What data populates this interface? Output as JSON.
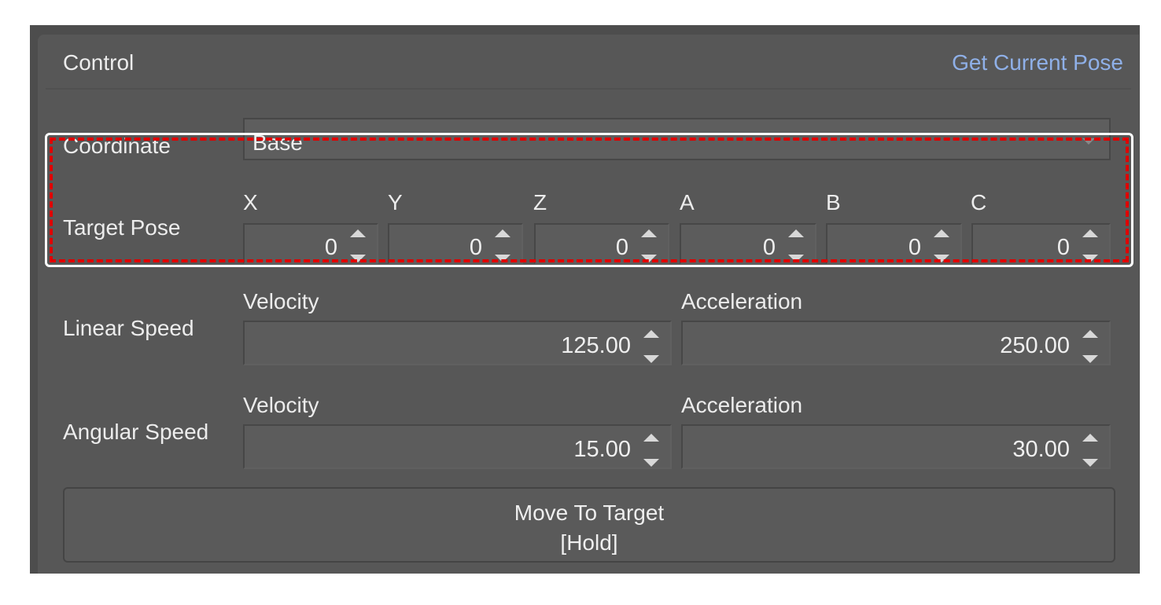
{
  "header": {
    "title": "Control",
    "link": "Get Current Pose"
  },
  "coordinate": {
    "label": "Coordinate",
    "value": "Base"
  },
  "target_pose": {
    "label": "Target Pose",
    "axes": [
      {
        "name": "X",
        "value": "0"
      },
      {
        "name": "Y",
        "value": "0"
      },
      {
        "name": "Z",
        "value": "0"
      },
      {
        "name": "A",
        "value": "0"
      },
      {
        "name": "B",
        "value": "0"
      },
      {
        "name": "C",
        "value": "0"
      }
    ]
  },
  "linear_speed": {
    "label": "Linear Speed",
    "velocity_label": "Velocity",
    "velocity": "125.00",
    "acceleration_label": "Acceleration",
    "acceleration": "250.00"
  },
  "angular_speed": {
    "label": "Angular Speed",
    "velocity_label": "Velocity",
    "velocity": "15.00",
    "acceleration_label": "Acceleration",
    "acceleration": "30.00"
  },
  "move_button": {
    "line1": "Move To Target",
    "line2": "[Hold]"
  },
  "colors": {
    "link": "#8fb0e8",
    "highlight": "#e00000"
  }
}
